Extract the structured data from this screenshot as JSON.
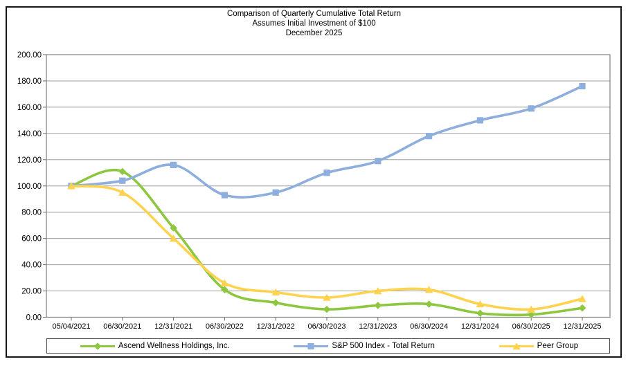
{
  "chart_data": {
    "type": "line",
    "title": "Comparison of Quarterly Cumulative Total Return",
    "subtitle": "Assumes Initial Investment of $100",
    "period_label": "December 2025",
    "categories": [
      "05/04/2021",
      "06/30/2021",
      "12/31/2021",
      "06/30/2022",
      "12/31/2022",
      "06/30/2023",
      "12/31/2023",
      "06/30/2024",
      "12/31/2024",
      "06/30/2025",
      "12/31/2025"
    ],
    "series": [
      {
        "name": "Ascend Wellness Holdings, Inc.",
        "marker": "diamond",
        "color": "#8dc63f",
        "values": [
          100,
          111,
          68,
          21,
          11,
          6,
          9,
          10,
          3,
          2,
          7
        ]
      },
      {
        "name": "S&P 500 Index - Total Return",
        "marker": "square",
        "color": "#8eaedd",
        "values": [
          100,
          104,
          116,
          93,
          95,
          110,
          119,
          138,
          150,
          159,
          176
        ]
      },
      {
        "name": "Peer Group",
        "marker": "triangle",
        "color": "#ffd24f",
        "values": [
          100,
          95,
          60,
          26,
          19,
          15,
          20,
          21,
          10,
          6,
          14
        ]
      }
    ],
    "ylim": [
      0,
      200
    ],
    "ytick_step": 20,
    "ytick_format": "0.00",
    "grid": true,
    "line_style": "smooth",
    "legend_position": "bottom"
  },
  "colors": {
    "grid": "#9b9b9b",
    "axis": "#6e6e6e",
    "plot_border": "#7f7f7f",
    "text": "#000000",
    "frame_border": "#161616"
  }
}
